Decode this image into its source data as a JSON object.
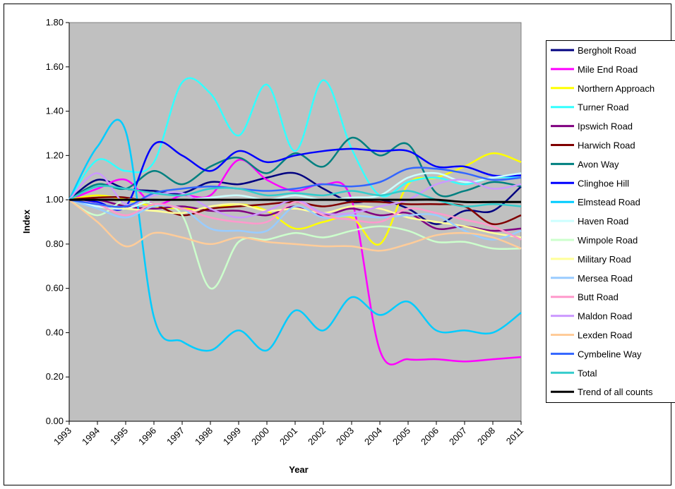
{
  "chart_data": {
    "type": "line",
    "smooth": true,
    "x_label": "Year",
    "y_label": "Index",
    "categories": [
      "1993",
      "1994",
      "1995",
      "1996",
      "1997",
      "1998",
      "1999",
      "2000",
      "2001",
      "2002",
      "2003",
      "2004",
      "2005",
      "2006",
      "2007",
      "2008",
      "2011"
    ],
    "ylim": [
      0,
      1.8
    ],
    "yticks": [
      {
        "value": 0,
        "label": "0.00"
      },
      {
        "value": 0.2,
        "label": "0.20"
      },
      {
        "value": 0.4,
        "label": "0.40"
      },
      {
        "value": 0.6,
        "label": "0.60"
      },
      {
        "value": 0.8,
        "label": "0.80"
      },
      {
        "value": 1,
        "label": "1.00"
      },
      {
        "value": 1.2,
        "label": "1.20"
      },
      {
        "value": 1.4,
        "label": "1.40"
      },
      {
        "value": 1.6,
        "label": "1.60"
      },
      {
        "value": 1.8,
        "label": "1.80"
      }
    ],
    "plot_background": "#c0c0c0",
    "legend": "right",
    "series": [
      {
        "name": "Bergholt Road",
        "color": "#000080",
        "values": [
          1.0,
          1.09,
          1.05,
          1.04,
          1.03,
          1.08,
          1.07,
          1.1,
          1.12,
          1.05,
          0.99,
          1.0,
          0.96,
          0.89,
          0.95,
          0.95,
          1.06
        ]
      },
      {
        "name": "Mile End Road",
        "color": "#ff00ff",
        "values": [
          1.0,
          1.05,
          1.09,
          0.98,
          1.02,
          1.02,
          1.18,
          1.09,
          1.04,
          1.07,
          1.0,
          0.32,
          0.28,
          0.28,
          0.27,
          0.28,
          0.29
        ]
      },
      {
        "name": "Northern Approach",
        "color": "#ffff00",
        "values": [
          1.0,
          1.02,
          1.0,
          0.97,
          0.96,
          0.96,
          0.98,
          0.95,
          0.87,
          0.9,
          0.92,
          0.8,
          1.07,
          1.1,
          1.15,
          1.21,
          1.17
        ]
      },
      {
        "name": "Turner Road",
        "color": "#33ffff",
        "values": [
          1.0,
          1.18,
          1.13,
          1.17,
          1.53,
          1.48,
          1.29,
          1.52,
          1.22,
          1.54,
          1.23,
          1.02,
          1.08,
          1.1,
          1.07,
          1.1,
          1.1
        ]
      },
      {
        "name": "Ipswich Road",
        "color": "#800080",
        "values": [
          1.0,
          1.0,
          0.97,
          0.96,
          0.97,
          0.95,
          0.95,
          0.93,
          0.97,
          0.93,
          0.96,
          0.93,
          0.94,
          0.87,
          0.88,
          0.86,
          0.87
        ]
      },
      {
        "name": "Harwich Road",
        "color": "#800000",
        "values": [
          1.0,
          1.01,
          1.01,
          0.98,
          0.93,
          0.96,
          0.97,
          0.98,
          0.99,
          0.97,
          0.99,
          0.99,
          0.98,
          0.98,
          0.97,
          0.89,
          0.93
        ]
      },
      {
        "name": "Avon Way",
        "color": "#008080",
        "values": [
          1.0,
          1.07,
          1.05,
          1.13,
          1.07,
          1.15,
          1.19,
          1.12,
          1.21,
          1.15,
          1.28,
          1.2,
          1.25,
          1.03,
          1.04,
          1.08,
          1.06
        ]
      },
      {
        "name": "Clinghoe Hill",
        "color": "#0000ff",
        "values": [
          1.0,
          0.99,
          0.97,
          1.25,
          1.2,
          1.13,
          1.22,
          1.17,
          1.2,
          1.22,
          1.23,
          1.22,
          1.22,
          1.15,
          1.15,
          1.11,
          1.11
        ]
      },
      {
        "name": "Elmstead Road",
        "color": "#00ccff",
        "values": [
          1.0,
          1.24,
          1.31,
          0.47,
          0.36,
          0.32,
          0.41,
          0.32,
          0.5,
          0.41,
          0.56,
          0.48,
          0.54,
          0.41,
          0.41,
          0.4,
          0.49
        ]
      },
      {
        "name": "Haven Road",
        "color": "#ccffff",
        "values": [
          1.0,
          0.97,
          0.96,
          1.0,
          1.0,
          1.01,
          1.02,
          1.0,
          1.02,
          1.0,
          1.01,
          1.02,
          1.1,
          1.12,
          1.08,
          1.1,
          1.12
        ]
      },
      {
        "name": "Wimpole Road",
        "color": "#ccffcc",
        "values": [
          1.0,
          0.93,
          1.0,
          0.98,
          0.93,
          0.6,
          0.81,
          0.82,
          0.85,
          0.83,
          0.86,
          0.88,
          0.86,
          0.81,
          0.81,
          0.78,
          0.78
        ]
      },
      {
        "name": "Military Road",
        "color": "#ffff99",
        "values": [
          1.0,
          0.98,
          0.96,
          0.95,
          0.94,
          0.97,
          0.98,
          0.95,
          0.96,
          0.94,
          0.97,
          0.96,
          0.92,
          0.9,
          0.88,
          0.85,
          0.83
        ]
      },
      {
        "name": "Mersea Road",
        "color": "#99ccff",
        "values": [
          1.0,
          0.96,
          0.92,
          0.97,
          0.96,
          0.87,
          0.86,
          0.86,
          0.97,
          0.92,
          0.93,
          0.92,
          0.93,
          0.93,
          0.86,
          0.82,
          0.86
        ]
      },
      {
        "name": "Butt Road",
        "color": "#ff99cc",
        "values": [
          1.0,
          0.98,
          0.93,
          0.98,
          0.96,
          0.92,
          0.9,
          0.9,
          0.99,
          0.93,
          0.91,
          0.9,
          0.96,
          0.94,
          0.91,
          0.88,
          0.82
        ]
      },
      {
        "name": "Maldon Road",
        "color": "#cc99ff",
        "values": [
          1.0,
          1.12,
          0.98,
          1.02,
          1.03,
          0.96,
          0.92,
          0.95,
          1.0,
          0.94,
          0.94,
          0.97,
          1.0,
          1.07,
          1.09,
          1.05,
          1.07
        ]
      },
      {
        "name": "Lexden Road",
        "color": "#ffcc99",
        "values": [
          1.0,
          0.9,
          0.79,
          0.85,
          0.83,
          0.8,
          0.83,
          0.81,
          0.8,
          0.79,
          0.79,
          0.77,
          0.8,
          0.84,
          0.85,
          0.83,
          0.78
        ]
      },
      {
        "name": "Cymbeline Way",
        "color": "#3366ff",
        "values": [
          1.0,
          0.98,
          0.97,
          1.03,
          1.05,
          1.06,
          1.05,
          1.04,
          1.05,
          1.07,
          1.06,
          1.08,
          1.14,
          1.14,
          1.12,
          1.09,
          1.1
        ]
      },
      {
        "name": "Total",
        "color": "#33cccc",
        "values": [
          1.0,
          1.06,
          1.05,
          1.03,
          1.02,
          1.05,
          1.05,
          1.02,
          1.03,
          1.02,
          1.04,
          1.02,
          1.04,
          1.0,
          0.97,
          0.98,
          0.97
        ]
      },
      {
        "name": "Trend of all counts",
        "color": "#000000",
        "values": [
          1.0,
          1.0,
          1.0,
          1.0,
          1.0,
          1.0,
          1.0,
          1.0,
          1.0,
          1.0,
          1.0,
          1.0,
          1.0,
          1.0,
          0.99,
          0.99,
          0.99
        ]
      }
    ]
  }
}
